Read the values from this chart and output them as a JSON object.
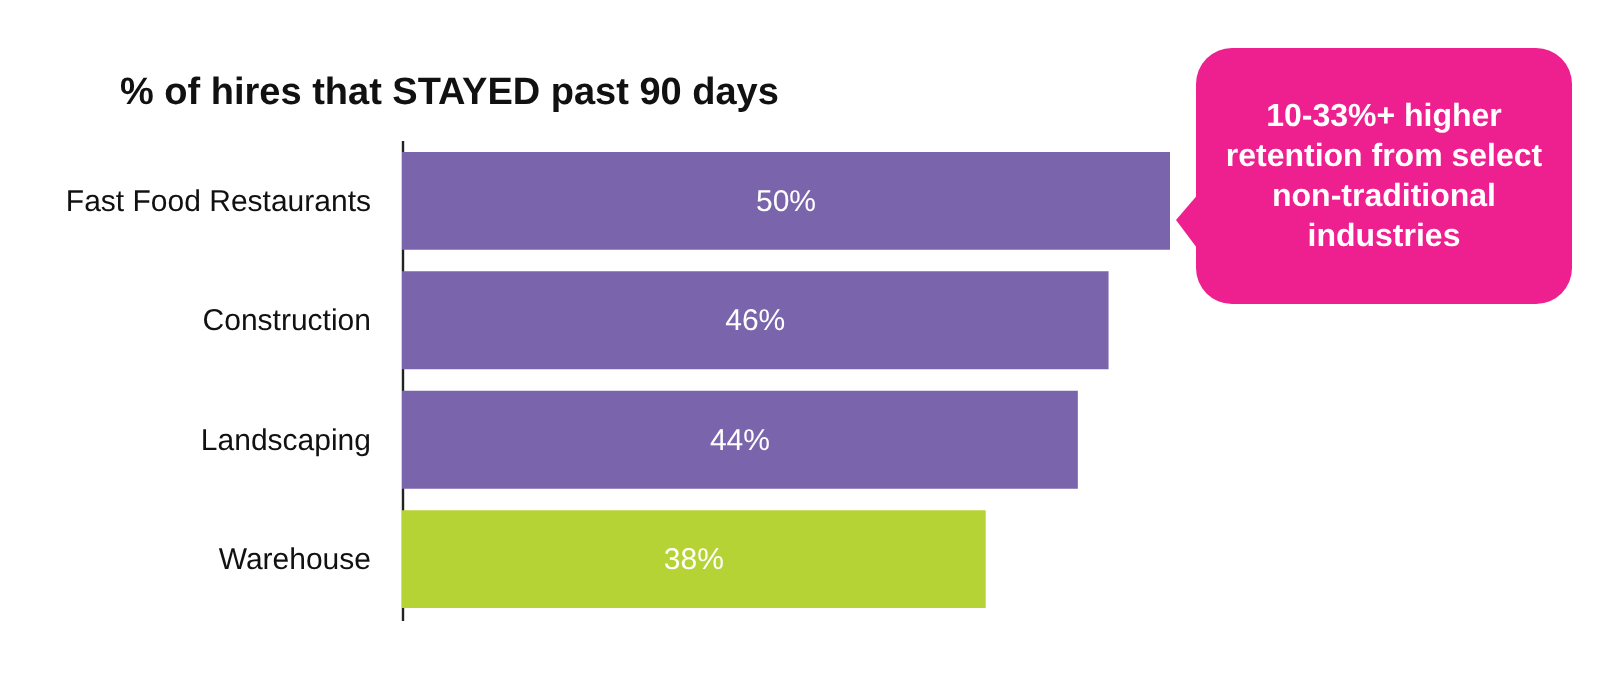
{
  "chart_data": {
    "type": "bar",
    "orientation": "horizontal",
    "title": "% of hires that STAYED past 90 days",
    "categories": [
      "Fast Food Restaurants",
      "Construction",
      "Landscaping",
      "Warehouse"
    ],
    "values": [
      50,
      46,
      44,
      38
    ],
    "colors": [
      "#7a65ad",
      "#7a65ad",
      "#7a65ad",
      "#b5d334"
    ],
    "value_labels": [
      "50%",
      "46%",
      "44%",
      "38%"
    ],
    "xlim": [
      0,
      50
    ],
    "annotations": [
      "10-33%+ higher retention from select non-traditional industries"
    ]
  }
}
